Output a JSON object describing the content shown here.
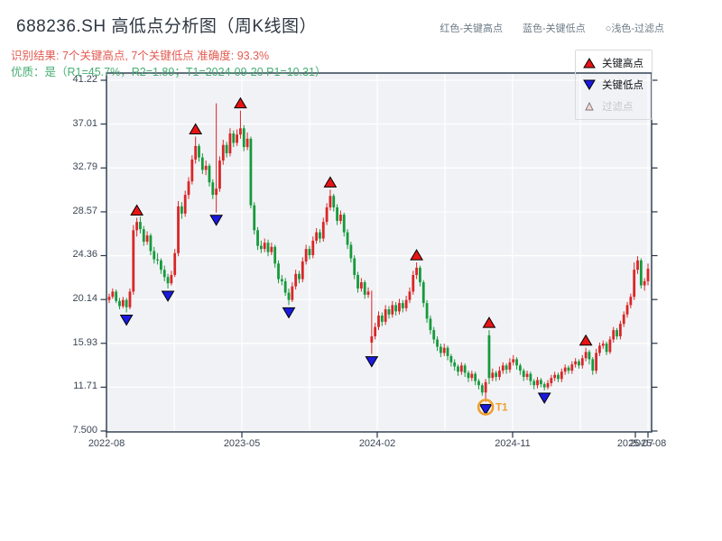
{
  "header": {
    "title": "688236.SH 高低点分析图（周K线图）",
    "subtitle_result": "识别结果: 7个关键高点, 7个关键低点  准确度: 93.3%",
    "subtitle_quality": "优质：是（R1=45.7%，R2=1.89；T1=2024-09-20 P1=10.31）",
    "color_key": [
      "红色-关键高点",
      "蓝色-关键低点",
      "○浅色-过滤点"
    ]
  },
  "chart_data": {
    "type": "candlestick",
    "title": "688236.SH 高低点分析图（周K线图）",
    "y_axis_tick_labels": [
      "41.22",
      "37.01",
      "32.79",
      "28.57",
      "24.36",
      "20.14",
      "15.93",
      "11.71",
      "7.500"
    ],
    "y_axis_tick_values": [
      41.22,
      37.01,
      32.79,
      28.57,
      24.36,
      20.14,
      15.93,
      11.71,
      7.5
    ],
    "x_axis_tick_labels": [
      "2022-08",
      "2023-05",
      "2024-02",
      "2024-11",
      "2025-07",
      "2025-08"
    ],
    "legend_items": [
      {
        "label": "关键高点",
        "marker": "red-up-triangle"
      },
      {
        "label": "关键低点",
        "marker": "blue-down-triangle"
      },
      {
        "label": "过滤点",
        "marker": "pale-small-triangle"
      }
    ],
    "key_high_indices": [
      8,
      25,
      38,
      64,
      89,
      110,
      138
    ],
    "key_low_indices": [
      5,
      17,
      31,
      52,
      76,
      109,
      126
    ],
    "t1_annotation": {
      "index": 109,
      "label": "T1"
    },
    "colors": {
      "bullish": "#d92627",
      "bearish": "#169a3c",
      "key_high_marker": "#e81414",
      "key_low_marker": "#1a1ae0",
      "filtered_marker": "#f7d6d6",
      "t1_highlight": "#efa02e",
      "axis": "#253649",
      "grid": "#ffffff",
      "plot_bg": "#f1f2f5"
    },
    "candles_ohlc": [
      [
        20.1,
        20.7,
        19.8,
        20.4
      ],
      [
        20.4,
        21.2,
        20.2,
        20.9
      ],
      [
        20.9,
        21.1,
        19.8,
        20.0
      ],
      [
        20.0,
        20.3,
        19.2,
        19.5
      ],
      [
        19.5,
        20.4,
        19.3,
        20.1
      ],
      [
        20.1,
        20.3,
        18.9,
        19.4
      ],
      [
        19.4,
        21.2,
        19.2,
        20.9
      ],
      [
        20.9,
        27.3,
        20.6,
        26.8
      ],
      [
        26.8,
        28.0,
        26.2,
        27.6
      ],
      [
        27.6,
        28.1,
        26.5,
        26.9
      ],
      [
        26.9,
        27.2,
        25.3,
        25.7
      ],
      [
        25.7,
        26.7,
        25.4,
        26.3
      ],
      [
        26.3,
        26.5,
        24.4,
        24.8
      ],
      [
        24.8,
        25.2,
        23.6,
        24.0
      ],
      [
        24.0,
        24.6,
        23.5,
        23.9
      ],
      [
        23.9,
        24.1,
        22.6,
        23.0
      ],
      [
        23.0,
        23.4,
        21.9,
        22.3
      ],
      [
        22.3,
        22.6,
        21.2,
        21.7
      ],
      [
        21.7,
        22.9,
        21.5,
        22.5
      ],
      [
        22.5,
        25.0,
        22.3,
        24.6
      ],
      [
        24.6,
        29.6,
        24.3,
        29.1
      ],
      [
        29.1,
        29.5,
        27.9,
        28.4
      ],
      [
        28.4,
        30.6,
        28.1,
        30.2
      ],
      [
        30.2,
        31.9,
        29.8,
        31.5
      ],
      [
        31.5,
        34.0,
        31.2,
        33.6
      ],
      [
        33.6,
        35.8,
        33.2,
        34.9
      ],
      [
        34.9,
        35.1,
        33.4,
        33.8
      ],
      [
        33.8,
        34.2,
        32.2,
        32.6
      ],
      [
        32.6,
        33.5,
        32.1,
        33.0
      ],
      [
        33.0,
        33.2,
        31.0,
        31.4
      ],
      [
        31.4,
        31.7,
        29.8,
        30.2
      ],
      [
        30.2,
        39.0,
        28.5,
        30.8
      ],
      [
        30.8,
        33.9,
        30.5,
        33.5
      ],
      [
        33.5,
        35.5,
        33.1,
        35.0
      ],
      [
        35.0,
        35.3,
        33.8,
        34.2
      ],
      [
        34.2,
        36.6,
        33.9,
        36.1
      ],
      [
        36.1,
        36.4,
        34.8,
        35.2
      ],
      [
        35.2,
        36.5,
        34.9,
        36.0
      ],
      [
        36.0,
        38.3,
        35.6,
        36.6
      ],
      [
        36.6,
        36.9,
        34.4,
        34.8
      ],
      [
        34.8,
        36.2,
        34.5,
        35.6
      ],
      [
        35.6,
        35.8,
        28.9,
        29.2
      ],
      [
        29.2,
        29.5,
        26.4,
        26.8
      ],
      [
        26.8,
        27.1,
        24.9,
        25.3
      ],
      [
        25.3,
        25.8,
        24.6,
        25.0
      ],
      [
        25.0,
        26.0,
        24.7,
        25.6
      ],
      [
        25.6,
        25.9,
        24.3,
        24.7
      ],
      [
        24.7,
        25.6,
        24.4,
        25.2
      ],
      [
        25.2,
        25.4,
        23.2,
        23.6
      ],
      [
        23.6,
        23.9,
        21.7,
        22.1
      ],
      [
        22.1,
        22.5,
        21.5,
        21.9
      ],
      [
        21.9,
        22.2,
        20.5,
        20.8
      ],
      [
        20.8,
        21.2,
        19.6,
        20.1
      ],
      [
        20.1,
        21.8,
        19.9,
        21.4
      ],
      [
        21.4,
        23.0,
        21.1,
        22.6
      ],
      [
        22.6,
        22.9,
        21.7,
        22.1
      ],
      [
        22.1,
        24.2,
        21.8,
        23.8
      ],
      [
        23.8,
        25.4,
        23.5,
        25.0
      ],
      [
        25.0,
        25.3,
        24.0,
        24.4
      ],
      [
        24.4,
        26.2,
        24.1,
        25.8
      ],
      [
        25.8,
        27.0,
        25.5,
        26.6
      ],
      [
        26.6,
        26.9,
        25.6,
        26.0
      ],
      [
        26.0,
        28.0,
        25.7,
        27.6
      ],
      [
        27.6,
        29.4,
        27.3,
        29.0
      ],
      [
        29.0,
        30.7,
        28.7,
        30.1
      ],
      [
        30.1,
        30.3,
        28.6,
        29.0
      ],
      [
        29.0,
        29.3,
        27.3,
        27.7
      ],
      [
        27.7,
        28.7,
        27.4,
        28.3
      ],
      [
        28.3,
        28.5,
        26.2,
        26.6
      ],
      [
        26.6,
        26.9,
        25.0,
        25.4
      ],
      [
        25.4,
        25.7,
        23.7,
        24.1
      ],
      [
        24.1,
        24.4,
        22.1,
        22.5
      ],
      [
        22.5,
        22.8,
        20.8,
        21.2
      ],
      [
        21.2,
        22.2,
        20.9,
        21.8
      ],
      [
        21.8,
        22.0,
        20.2,
        20.6
      ],
      [
        20.6,
        21.3,
        20.3,
        20.9
      ],
      [
        16.0,
        21.0,
        14.9,
        16.6
      ],
      [
        16.6,
        17.9,
        16.3,
        17.5
      ],
      [
        17.5,
        19.0,
        17.2,
        18.6
      ],
      [
        18.6,
        18.9,
        17.6,
        18.0
      ],
      [
        18.0,
        19.6,
        17.7,
        19.2
      ],
      [
        19.2,
        19.5,
        18.3,
        18.7
      ],
      [
        18.7,
        20.0,
        18.4,
        19.6
      ],
      [
        19.6,
        19.9,
        18.6,
        19.0
      ],
      [
        19.0,
        20.2,
        18.7,
        19.8
      ],
      [
        19.8,
        20.1,
        18.9,
        19.3
      ],
      [
        19.3,
        20.5,
        19.0,
        20.1
      ],
      [
        20.1,
        21.3,
        19.8,
        20.9
      ],
      [
        20.9,
        22.9,
        20.6,
        22.5
      ],
      [
        22.5,
        23.7,
        22.1,
        23.2
      ],
      [
        23.2,
        23.4,
        21.4,
        21.8
      ],
      [
        21.8,
        22.0,
        19.4,
        19.8
      ],
      [
        19.8,
        20.1,
        17.9,
        18.3
      ],
      [
        18.3,
        18.6,
        16.8,
        17.2
      ],
      [
        17.2,
        17.5,
        15.9,
        16.3
      ],
      [
        16.3,
        16.6,
        15.2,
        15.6
      ],
      [
        15.6,
        15.9,
        14.6,
        15.0
      ],
      [
        15.0,
        15.9,
        14.7,
        15.5
      ],
      [
        15.5,
        15.7,
        14.3,
        14.7
      ],
      [
        14.7,
        14.9,
        13.7,
        14.1
      ],
      [
        14.1,
        14.4,
        13.3,
        13.7
      ],
      [
        13.7,
        13.9,
        12.8,
        13.2
      ],
      [
        13.2,
        14.1,
        12.9,
        13.8
      ],
      [
        13.8,
        14.0,
        12.7,
        13.1
      ],
      [
        13.1,
        13.3,
        12.2,
        12.6
      ],
      [
        12.6,
        13.3,
        12.3,
        13.0
      ],
      [
        13.0,
        13.2,
        11.9,
        12.3
      ],
      [
        12.3,
        12.5,
        11.5,
        11.9
      ],
      [
        11.9,
        12.1,
        10.9,
        11.2
      ],
      [
        11.2,
        12.5,
        10.31,
        12.2
      ],
      [
        16.7,
        17.2,
        12.0,
        12.6
      ],
      [
        12.6,
        13.5,
        12.3,
        13.1
      ],
      [
        13.1,
        13.3,
        12.3,
        12.7
      ],
      [
        12.7,
        13.7,
        12.4,
        13.3
      ],
      [
        13.3,
        14.1,
        13.0,
        13.8
      ],
      [
        13.8,
        14.0,
        13.0,
        13.4
      ],
      [
        13.4,
        14.5,
        13.1,
        14.1
      ],
      [
        14.1,
        14.8,
        13.8,
        14.4
      ],
      [
        14.4,
        14.6,
        13.4,
        13.8
      ],
      [
        13.8,
        14.0,
        12.9,
        13.3
      ],
      [
        13.3,
        13.5,
        12.3,
        12.7
      ],
      [
        12.7,
        13.3,
        12.4,
        13.0
      ],
      [
        13.0,
        13.2,
        11.9,
        12.3
      ],
      [
        12.3,
        12.5,
        11.5,
        11.9
      ],
      [
        11.9,
        12.7,
        11.6,
        12.4
      ],
      [
        12.4,
        12.6,
        11.7,
        12.0
      ],
      [
        12.0,
        12.2,
        11.4,
        11.7
      ],
      [
        11.7,
        12.4,
        11.5,
        12.1
      ],
      [
        12.1,
        12.9,
        11.8,
        12.6
      ],
      [
        12.6,
        13.2,
        12.3,
        12.9
      ],
      [
        12.9,
        13.1,
        12.2,
        12.5
      ],
      [
        12.5,
        13.5,
        12.2,
        13.2
      ],
      [
        13.2,
        13.9,
        12.9,
        13.6
      ],
      [
        13.6,
        13.8,
        13.0,
        13.3
      ],
      [
        13.3,
        14.2,
        13.0,
        13.9
      ],
      [
        13.9,
        14.5,
        13.6,
        14.2
      ],
      [
        14.2,
        14.4,
        13.5,
        13.8
      ],
      [
        13.8,
        14.8,
        13.5,
        14.5
      ],
      [
        14.5,
        15.5,
        14.2,
        15.1
      ],
      [
        15.1,
        15.3,
        13.9,
        14.4
      ],
      [
        14.4,
        14.6,
        12.9,
        13.3
      ],
      [
        13.3,
        15.4,
        13.0,
        15.0
      ],
      [
        15.0,
        16.0,
        14.7,
        15.7
      ],
      [
        15.7,
        16.2,
        15.4,
        15.9
      ],
      [
        15.9,
        16.1,
        14.8,
        15.1
      ],
      [
        15.1,
        16.6,
        14.9,
        16.3
      ],
      [
        16.3,
        17.5,
        16.0,
        17.2
      ],
      [
        17.2,
        17.4,
        16.3,
        16.6
      ],
      [
        16.6,
        18.1,
        16.3,
        17.8
      ],
      [
        17.8,
        19.0,
        17.5,
        18.7
      ],
      [
        18.7,
        19.9,
        18.4,
        19.6
      ],
      [
        19.6,
        20.7,
        19.3,
        20.4
      ],
      [
        20.4,
        23.7,
        20.1,
        23.0
      ],
      [
        23.0,
        24.3,
        22.6,
        23.9
      ],
      [
        23.9,
        24.1,
        21.2,
        21.5
      ],
      [
        21.5,
        22.2,
        21.0,
        21.9
      ],
      [
        21.9,
        23.6,
        21.5,
        23.1
      ]
    ]
  }
}
